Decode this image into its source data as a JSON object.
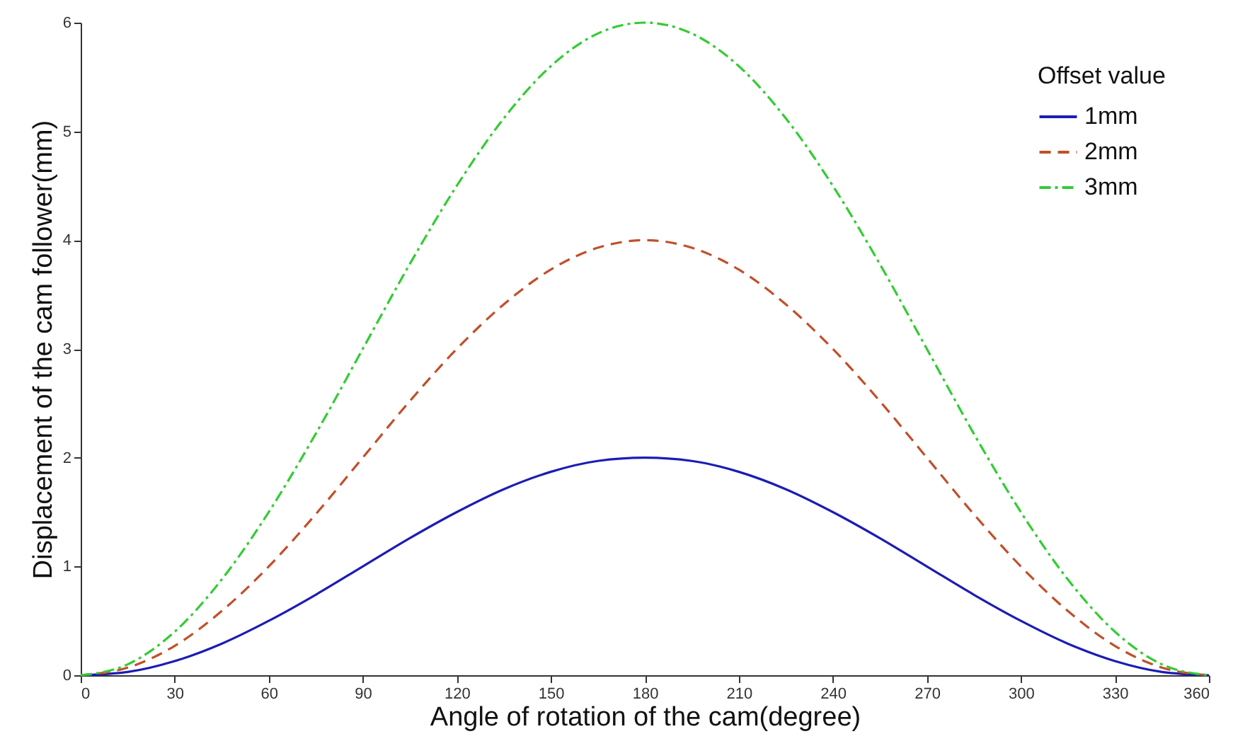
{
  "chart_data": {
    "type": "line",
    "xlabel": "Angle of rotation of the cam(degree)",
    "ylabel": "Displacement of the cam follower(mm)",
    "legend_title": "Offset value",
    "legend": "top right",
    "grid": false,
    "marker": "none",
    "x": [
      0,
      15,
      30,
      45,
      60,
      75,
      90,
      105,
      120,
      135,
      150,
      165,
      180,
      195,
      210,
      225,
      240,
      255,
      270,
      285,
      300,
      315,
      330,
      345,
      360
    ],
    "xlim": [
      0,
      360
    ],
    "xticks": [
      0,
      30,
      60,
      90,
      120,
      150,
      180,
      210,
      240,
      270,
      300,
      330,
      360
    ],
    "ylim": [
      0,
      6
    ],
    "yticks": [
      0,
      1,
      2,
      3,
      4,
      5,
      6
    ],
    "series": [
      {
        "name": "1mm",
        "color": "#1c1cb4",
        "line_style": "solid",
        "values": [
          0,
          0.03,
          0.13,
          0.29,
          0.5,
          0.74,
          1,
          1.26,
          1.5,
          1.71,
          1.87,
          1.97,
          2,
          1.97,
          1.87,
          1.71,
          1.5,
          1.26,
          1,
          0.74,
          0.5,
          0.29,
          0.13,
          0.03,
          0
        ]
      },
      {
        "name": "2mm",
        "color": "#c0502a",
        "line_style": "dashed",
        "values": [
          0,
          0.07,
          0.27,
          0.59,
          1,
          1.48,
          2,
          2.52,
          3,
          3.41,
          3.73,
          3.93,
          4,
          3.93,
          3.73,
          3.41,
          3,
          2.52,
          2,
          1.48,
          1,
          0.59,
          0.27,
          0.07,
          0
        ]
      },
      {
        "name": "3mm",
        "color": "#33cc33",
        "line_style": "dashdot",
        "values": [
          0,
          0.1,
          0.4,
          0.88,
          1.5,
          2.22,
          3,
          3.78,
          4.5,
          5.12,
          5.6,
          5.9,
          6,
          5.9,
          5.6,
          5.12,
          4.5,
          3.78,
          3,
          2.22,
          1.5,
          0.88,
          0.4,
          0.1,
          0
        ]
      }
    ]
  }
}
